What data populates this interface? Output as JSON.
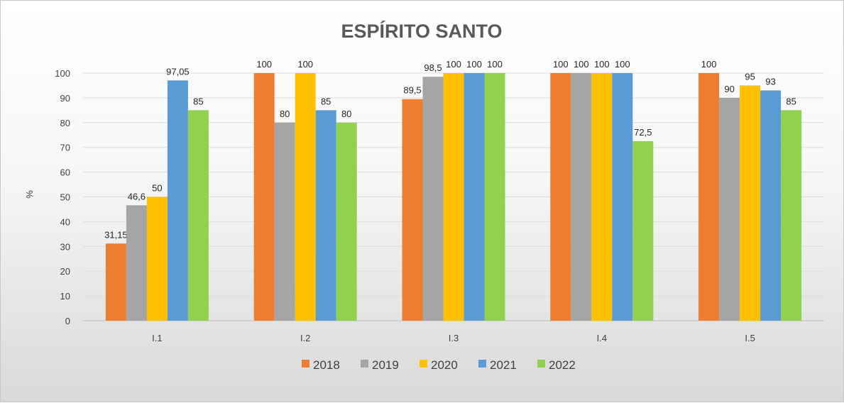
{
  "chart_data": {
    "type": "bar",
    "title": "ESPÍRITO SANTO",
    "xlabel": "",
    "ylabel": "%",
    "ylim": [
      0,
      100
    ],
    "yticks": [
      0,
      10,
      20,
      30,
      40,
      50,
      60,
      70,
      80,
      90,
      100
    ],
    "grid": true,
    "legend_position": "bottom",
    "categories": [
      "I.1",
      "I.2",
      "I.3",
      "I.4",
      "I.5"
    ],
    "series": [
      {
        "name": "2018",
        "color": "#ED7D31",
        "values": [
          31.15,
          100,
          89.5,
          100,
          100
        ],
        "labels": [
          "31,15",
          "100",
          "89,5",
          "100",
          "100"
        ]
      },
      {
        "name": "2019",
        "color": "#A5A5A5",
        "values": [
          46.6,
          80,
          98.5,
          100,
          90
        ],
        "labels": [
          "46,6",
          "80",
          "98,5",
          "100",
          "90"
        ]
      },
      {
        "name": "2020",
        "color": "#FFC000",
        "values": [
          50,
          100,
          100,
          100,
          95
        ],
        "labels": [
          "50",
          "100",
          "100",
          "100",
          "95"
        ]
      },
      {
        "name": "2021",
        "color": "#5B9BD5",
        "values": [
          97.05,
          85,
          100,
          100,
          93
        ],
        "labels": [
          "97,05",
          "85",
          "100",
          "100",
          "93"
        ]
      },
      {
        "name": "2022",
        "color": "#92D050",
        "values": [
          85,
          80,
          100,
          72.5,
          85
        ],
        "labels": [
          "85",
          "80",
          "100",
          "72,5",
          "85"
        ]
      }
    ]
  }
}
